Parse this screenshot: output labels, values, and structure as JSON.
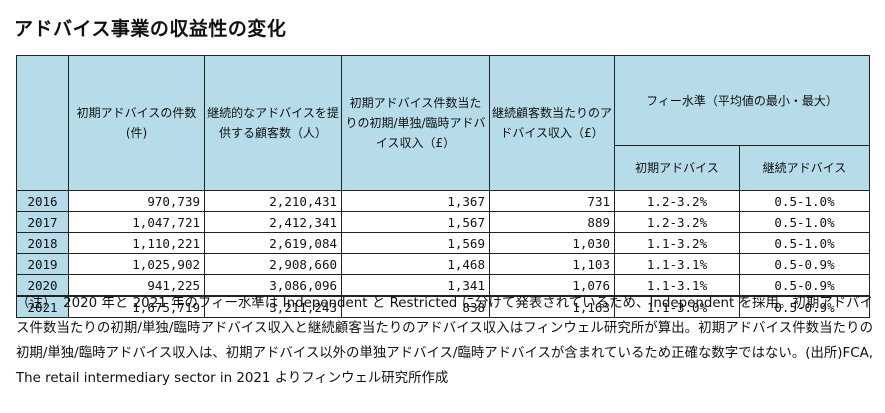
{
  "title": "アドバイス事業の収益性の変化",
  "headers": {
    "col_initial_count": "初期アドバイスの件数(件)",
    "col_ongoing_clients": "継続的なアドバイスを提供する顧客数（人）",
    "col_initial_revenue": "初期アドバイス件数当たりの初期/単独/臨時アドバイス収入（£）",
    "col_ongoing_revenue": "継続顧客数当たりのアドバイス収入（£）",
    "fee_group": "フィー水準（平均値の最小・最大）",
    "fee_initial": "初期アドバイス",
    "fee_ongoing": "継続アドバイス"
  },
  "rows": [
    {
      "year": "2016",
      "initial_count": "970,739",
      "ongoing_clients": "2,210,431",
      "initial_revenue": "1,367",
      "ongoing_revenue": "731",
      "fee_initial": "1.2-3.2%",
      "fee_ongoing": "0.5-1.0%"
    },
    {
      "year": "2017",
      "initial_count": "1,047,721",
      "ongoing_clients": "2,412,341",
      "initial_revenue": "1,567",
      "ongoing_revenue": "889",
      "fee_initial": "1.2-3.2%",
      "fee_ongoing": "0.5-1.0%"
    },
    {
      "year": "2018",
      "initial_count": "1,110,221",
      "ongoing_clients": "2,619,084",
      "initial_revenue": "1,569",
      "ongoing_revenue": "1,030",
      "fee_initial": "1.1-3.2%",
      "fee_ongoing": "0.5-1.0%"
    },
    {
      "year": "2019",
      "initial_count": "1,025,902",
      "ongoing_clients": "2,908,660",
      "initial_revenue": "1,468",
      "ongoing_revenue": "1,103",
      "fee_initial": "1.1-3.1%",
      "fee_ongoing": "0.5-0.9%"
    },
    {
      "year": "2020",
      "initial_count": "941,225",
      "ongoing_clients": "3,086,096",
      "initial_revenue": "1,341",
      "ongoing_revenue": "1,076",
      "fee_initial": "1.1-3.1%",
      "fee_ongoing": "0.5-0.9%"
    },
    {
      "year": "2021",
      "initial_count": "1,675,719",
      "ongoing_clients": "3,211,243",
      "initial_revenue": "838",
      "ongoing_revenue": "1,163",
      "fee_initial": "1.1-3.0%",
      "fee_ongoing": "0.5-0.9%"
    }
  ],
  "note": "（注）　2020 年と 2021 年のフィー水準は Independent と Restricted に分けて発表されているため、Independent を採用。初期アドバイス件数当たりの初期/単独/臨時アドバイス収入と継続顧客当たりのアドバイス収入はフィンウェル研究所が算出。初期アドバイス件数当たりの初期/単独/臨時アドバイス収入は、初期アドバイス以外の単独アドバイス/臨時アドバイスが含まれているため正確な数字ではない。(出所)FCA, The retail intermediary sector in 2021 よりフィンウェル研究所作成"
}
